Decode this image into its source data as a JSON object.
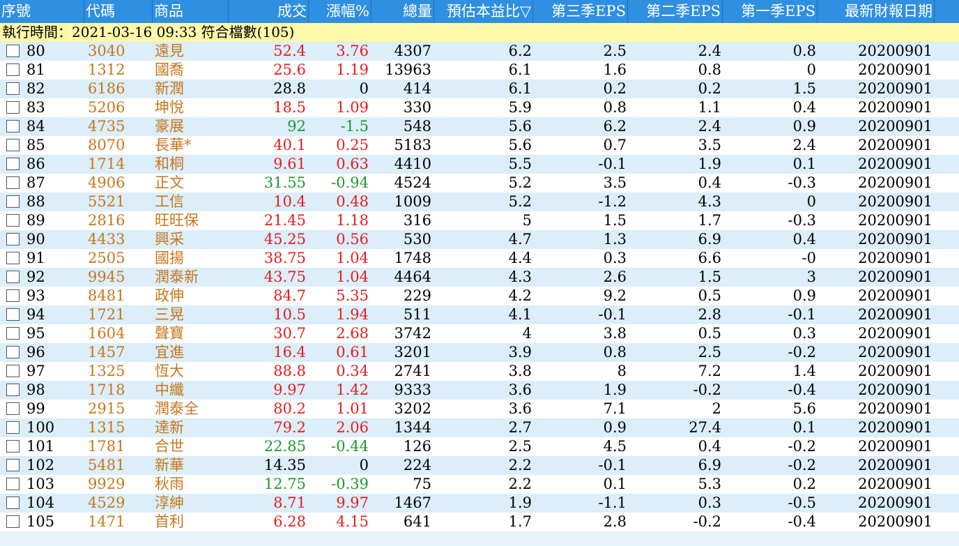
{
  "columns": {
    "seq": "序號",
    "code": "代碼",
    "name": "商品",
    "price": "成交",
    "change": "漲幅%",
    "volume": "總量",
    "pe": "預估本益比▽",
    "eps_q3": "第三季EPS",
    "eps_q2": "第二季EPS",
    "eps_q1": "第一季EPS",
    "report_date": "最新財報日期"
  },
  "info_line": "執行時間：2021-03-16 09:33 符合檔數(105)",
  "colors": {
    "header_bg": "#2f8fe0",
    "row_alt": "#dbeefa",
    "up": "#e81c1c",
    "down": "#1a9a2a",
    "code": "#c8761a",
    "info_bg": "#fff8a8"
  },
  "rows": [
    {
      "seq": "80",
      "code": "3040",
      "name": "遠見",
      "price": "52.4",
      "change": "3.76",
      "volume": "4307",
      "pe": "6.2",
      "eps_q3": "2.5",
      "eps_q2": "2.4",
      "eps_q1": "0.8",
      "date": "20200901",
      "dir": "up"
    },
    {
      "seq": "81",
      "code": "1312",
      "name": "國喬",
      "price": "25.6",
      "change": "1.19",
      "volume": "13963",
      "pe": "6.1",
      "eps_q3": "1.6",
      "eps_q2": "0.8",
      "eps_q1": "0",
      "date": "20200901",
      "dir": "up"
    },
    {
      "seq": "82",
      "code": "6186",
      "name": "新潤",
      "price": "28.8",
      "change": "0",
      "volume": "414",
      "pe": "6.1",
      "eps_q3": "0.2",
      "eps_q2": "0.2",
      "eps_q1": "1.5",
      "date": "20200901",
      "dir": "flat"
    },
    {
      "seq": "83",
      "code": "5206",
      "name": "坤悅",
      "price": "18.5",
      "change": "1.09",
      "volume": "330",
      "pe": "5.9",
      "eps_q3": "0.8",
      "eps_q2": "1.1",
      "eps_q1": "0.4",
      "date": "20200901",
      "dir": "up"
    },
    {
      "seq": "84",
      "code": "4735",
      "name": "豪展",
      "price": "92",
      "change": "-1.5",
      "volume": "548",
      "pe": "5.6",
      "eps_q3": "6.2",
      "eps_q2": "2.4",
      "eps_q1": "0.9",
      "date": "20200901",
      "dir": "down"
    },
    {
      "seq": "85",
      "code": "8070",
      "name": "長華*",
      "price": "40.1",
      "change": "0.25",
      "volume": "5183",
      "pe": "5.6",
      "eps_q3": "0.7",
      "eps_q2": "3.5",
      "eps_q1": "2.4",
      "date": "20200901",
      "dir": "up"
    },
    {
      "seq": "86",
      "code": "1714",
      "name": "和桐",
      "price": "9.61",
      "change": "0.63",
      "volume": "4410",
      "pe": "5.5",
      "eps_q3": "-0.1",
      "eps_q2": "1.9",
      "eps_q1": "0.1",
      "date": "20200901",
      "dir": "up"
    },
    {
      "seq": "87",
      "code": "4906",
      "name": "正文",
      "price": "31.55",
      "change": "-0.94",
      "volume": "4524",
      "pe": "5.2",
      "eps_q3": "3.5",
      "eps_q2": "0.4",
      "eps_q1": "-0.3",
      "date": "20200901",
      "dir": "down"
    },
    {
      "seq": "88",
      "code": "5521",
      "name": "工信",
      "price": "10.4",
      "change": "0.48",
      "volume": "1009",
      "pe": "5.2",
      "eps_q3": "-1.2",
      "eps_q2": "4.3",
      "eps_q1": "0",
      "date": "20200901",
      "dir": "up"
    },
    {
      "seq": "89",
      "code": "2816",
      "name": "旺旺保",
      "price": "21.45",
      "change": "1.18",
      "volume": "316",
      "pe": "5",
      "eps_q3": "1.5",
      "eps_q2": "1.7",
      "eps_q1": "-0.3",
      "date": "20200901",
      "dir": "up"
    },
    {
      "seq": "90",
      "code": "4433",
      "name": "興采",
      "price": "45.25",
      "change": "0.56",
      "volume": "530",
      "pe": "4.7",
      "eps_q3": "1.3",
      "eps_q2": "6.9",
      "eps_q1": "0.4",
      "date": "20200901",
      "dir": "up"
    },
    {
      "seq": "91",
      "code": "2505",
      "name": "國揚",
      "price": "38.75",
      "change": "1.04",
      "volume": "1748",
      "pe": "4.4",
      "eps_q3": "0.3",
      "eps_q2": "6.6",
      "eps_q1": "-0",
      "date": "20200901",
      "dir": "up"
    },
    {
      "seq": "92",
      "code": "9945",
      "name": "潤泰新",
      "price": "43.75",
      "change": "1.04",
      "volume": "4464",
      "pe": "4.3",
      "eps_q3": "2.6",
      "eps_q2": "1.5",
      "eps_q1": "3",
      "date": "20200901",
      "dir": "up"
    },
    {
      "seq": "93",
      "code": "8481",
      "name": "政伸",
      "price": "84.7",
      "change": "5.35",
      "volume": "229",
      "pe": "4.2",
      "eps_q3": "9.2",
      "eps_q2": "0.5",
      "eps_q1": "0.9",
      "date": "20200901",
      "dir": "up"
    },
    {
      "seq": "94",
      "code": "1721",
      "name": "三晃",
      "price": "10.5",
      "change": "1.94",
      "volume": "511",
      "pe": "4.1",
      "eps_q3": "-0.1",
      "eps_q2": "2.8",
      "eps_q1": "-0.1",
      "date": "20200901",
      "dir": "up"
    },
    {
      "seq": "95",
      "code": "1604",
      "name": "聲寶",
      "price": "30.7",
      "change": "2.68",
      "volume": "3742",
      "pe": "4",
      "eps_q3": "3.8",
      "eps_q2": "0.5",
      "eps_q1": "0.3",
      "date": "20200901",
      "dir": "up"
    },
    {
      "seq": "96",
      "code": "1457",
      "name": "宜進",
      "price": "16.4",
      "change": "0.61",
      "volume": "3201",
      "pe": "3.9",
      "eps_q3": "0.8",
      "eps_q2": "2.5",
      "eps_q1": "-0.2",
      "date": "20200901",
      "dir": "up"
    },
    {
      "seq": "97",
      "code": "1325",
      "name": "恆大",
      "price": "88.8",
      "change": "0.34",
      "volume": "2741",
      "pe": "3.8",
      "eps_q3": "8",
      "eps_q2": "7.2",
      "eps_q1": "1.4",
      "date": "20200901",
      "dir": "up"
    },
    {
      "seq": "98",
      "code": "1718",
      "name": "中纖",
      "price": "9.97",
      "change": "1.42",
      "volume": "9333",
      "pe": "3.6",
      "eps_q3": "1.9",
      "eps_q2": "-0.2",
      "eps_q1": "-0.4",
      "date": "20200901",
      "dir": "up"
    },
    {
      "seq": "99",
      "code": "2915",
      "name": "潤泰全",
      "price": "80.2",
      "change": "1.01",
      "volume": "3202",
      "pe": "3.6",
      "eps_q3": "7.1",
      "eps_q2": "2",
      "eps_q1": "5.6",
      "date": "20200901",
      "dir": "up"
    },
    {
      "seq": "100",
      "code": "1315",
      "name": "達新",
      "price": "79.2",
      "change": "2.06",
      "volume": "1344",
      "pe": "2.7",
      "eps_q3": "0.9",
      "eps_q2": "27.4",
      "eps_q1": "0.1",
      "date": "20200901",
      "dir": "up"
    },
    {
      "seq": "101",
      "code": "1781",
      "name": "合世",
      "price": "22.85",
      "change": "-0.44",
      "volume": "126",
      "pe": "2.5",
      "eps_q3": "4.5",
      "eps_q2": "0.4",
      "eps_q1": "-0.2",
      "date": "20200901",
      "dir": "down"
    },
    {
      "seq": "102",
      "code": "5481",
      "name": "新華",
      "price": "14.35",
      "change": "0",
      "volume": "224",
      "pe": "2.2",
      "eps_q3": "-0.1",
      "eps_q2": "6.9",
      "eps_q1": "-0.2",
      "date": "20200901",
      "dir": "flat"
    },
    {
      "seq": "103",
      "code": "9929",
      "name": "秋雨",
      "price": "12.75",
      "change": "-0.39",
      "volume": "75",
      "pe": "2.2",
      "eps_q3": "0.1",
      "eps_q2": "5.3",
      "eps_q1": "0.2",
      "date": "20200901",
      "dir": "down"
    },
    {
      "seq": "104",
      "code": "4529",
      "name": "淳紳",
      "price": "8.71",
      "change": "9.97",
      "volume": "1467",
      "pe": "1.9",
      "eps_q3": "-1.1",
      "eps_q2": "0.3",
      "eps_q1": "-0.5",
      "date": "20200901",
      "dir": "up"
    },
    {
      "seq": "105",
      "code": "1471",
      "name": "首利",
      "price": "6.28",
      "change": "4.15",
      "volume": "641",
      "pe": "1.7",
      "eps_q3": "2.8",
      "eps_q2": "-0.2",
      "eps_q1": "-0.4",
      "date": "20200901",
      "dir": "up"
    }
  ]
}
